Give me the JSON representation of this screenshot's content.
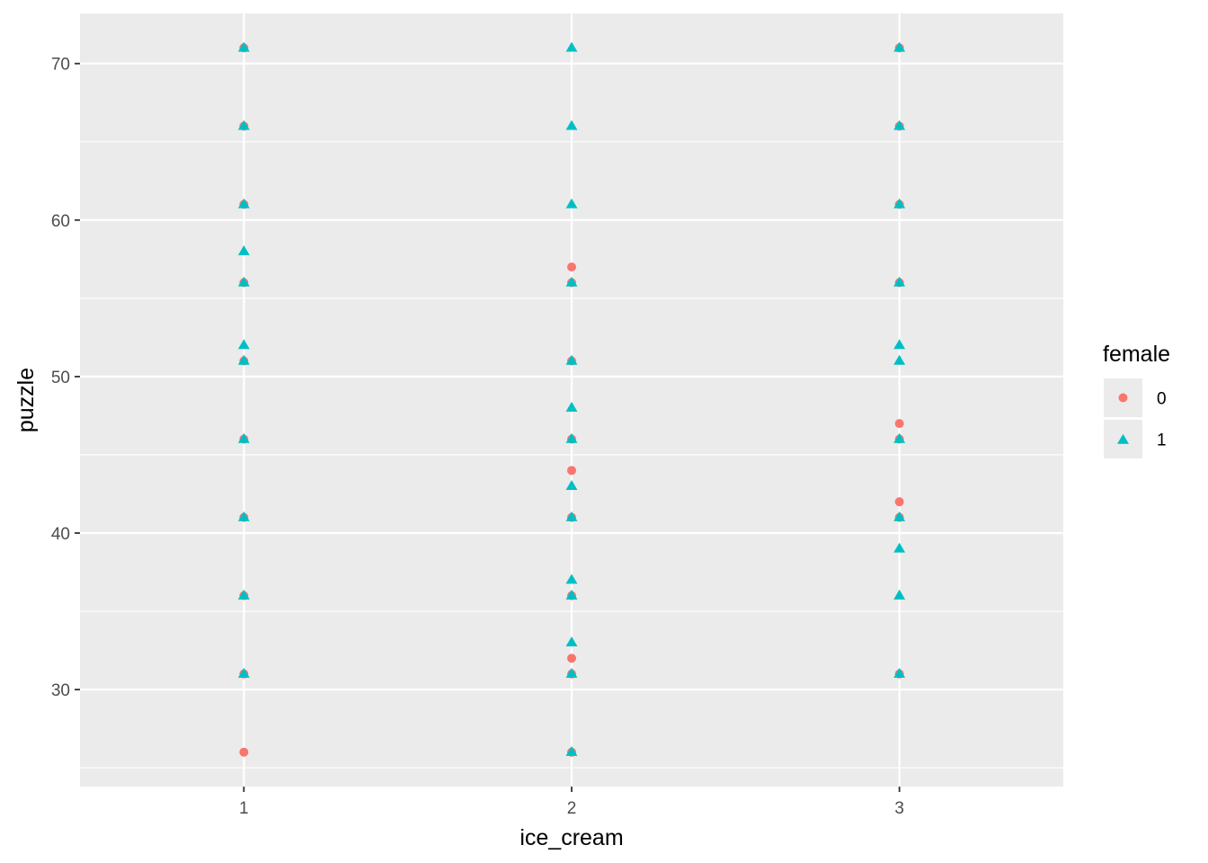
{
  "chart_data": {
    "type": "scatter",
    "title": "",
    "xlabel": "ice_cream",
    "ylabel": "puzzle",
    "xlim": [
      0.5,
      3.5
    ],
    "ylim": [
      23.8,
      73.2
    ],
    "x_ticks": [
      "1",
      "2",
      "3"
    ],
    "y_ticks": [
      "30",
      "40",
      "50",
      "60",
      "70"
    ],
    "grid": true,
    "legend": {
      "title": "female",
      "position": "right",
      "entries": [
        {
          "label": "0",
          "shape": "circle",
          "color": "#F8766D"
        },
        {
          "label": "1",
          "shape": "triangle",
          "color": "#00BFC4"
        }
      ]
    },
    "series": [
      {
        "name": "0",
        "shape": "circle",
        "color": "#F8766D",
        "points": [
          [
            1,
            26
          ],
          [
            1,
            31
          ],
          [
            1,
            36
          ],
          [
            1,
            41
          ],
          [
            1,
            46
          ],
          [
            1,
            51
          ],
          [
            1,
            56
          ],
          [
            1,
            61
          ],
          [
            1,
            66
          ],
          [
            1,
            71
          ],
          [
            2,
            26
          ],
          [
            2,
            31
          ],
          [
            2,
            32
          ],
          [
            2,
            36
          ],
          [
            2,
            41
          ],
          [
            2,
            44
          ],
          [
            2,
            46
          ],
          [
            2,
            51
          ],
          [
            2,
            56
          ],
          [
            2,
            57
          ],
          [
            3,
            31
          ],
          [
            3,
            41
          ],
          [
            3,
            42
          ],
          [
            3,
            46
          ],
          [
            3,
            47
          ],
          [
            3,
            56
          ],
          [
            3,
            61
          ],
          [
            3,
            66
          ],
          [
            3,
            71
          ]
        ]
      },
      {
        "name": "1",
        "shape": "triangle",
        "color": "#00BFC4",
        "points": [
          [
            1,
            31
          ],
          [
            1,
            36
          ],
          [
            1,
            41
          ],
          [
            1,
            46
          ],
          [
            1,
            51
          ],
          [
            1,
            52
          ],
          [
            1,
            56
          ],
          [
            1,
            58
          ],
          [
            1,
            61
          ],
          [
            1,
            66
          ],
          [
            1,
            71
          ],
          [
            2,
            26
          ],
          [
            2,
            31
          ],
          [
            2,
            33
          ],
          [
            2,
            36
          ],
          [
            2,
            37
          ],
          [
            2,
            41
          ],
          [
            2,
            43
          ],
          [
            2,
            46
          ],
          [
            2,
            48
          ],
          [
            2,
            51
          ],
          [
            2,
            56
          ],
          [
            2,
            61
          ],
          [
            2,
            66
          ],
          [
            2,
            71
          ],
          [
            3,
            31
          ],
          [
            3,
            36
          ],
          [
            3,
            39
          ],
          [
            3,
            41
          ],
          [
            3,
            46
          ],
          [
            3,
            51
          ],
          [
            3,
            52
          ],
          [
            3,
            56
          ],
          [
            3,
            61
          ],
          [
            3,
            66
          ],
          [
            3,
            71
          ]
        ]
      }
    ]
  }
}
